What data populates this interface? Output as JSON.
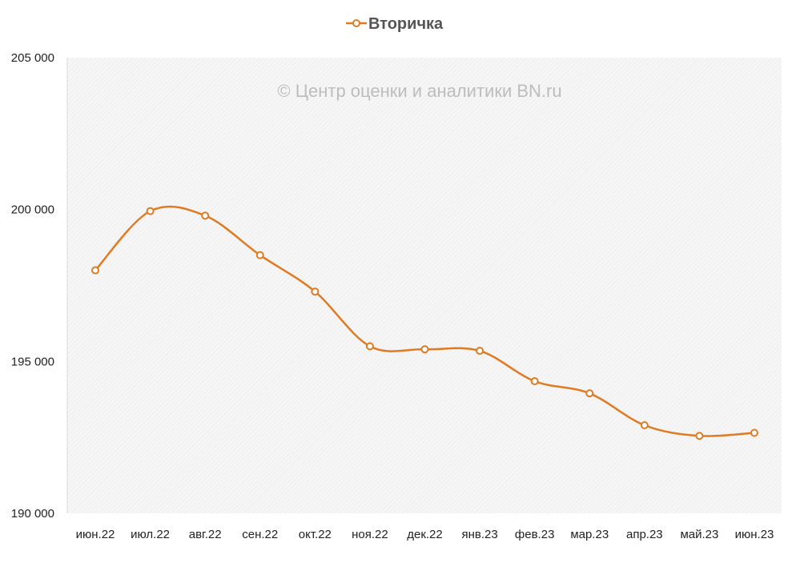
{
  "chart_data": {
    "type": "line",
    "title": "",
    "xlabel": "",
    "ylabel": "",
    "watermark": "© Центр оценки и аналитики BN.ru",
    "categories": [
      "июн.22",
      "июл.22",
      "авг.22",
      "сен.22",
      "окт.22",
      "ноя.22",
      "дек.22",
      "янв.23",
      "фев.23",
      "мар.23",
      "апр.23",
      "май.23",
      "июн.23"
    ],
    "series": [
      {
        "name": "Вторичка",
        "color": "#E07B24",
        "values": [
          198000,
          199950,
          199800,
          198500,
          197300,
          195500,
          195400,
          195350,
          194350,
          193950,
          192900,
          192550,
          192650
        ]
      }
    ],
    "ylim": [
      190000,
      205000
    ],
    "yticks": [
      190000,
      195000,
      200000,
      205000
    ],
    "ytick_labels": [
      "190 000",
      "195 000",
      "200 000",
      "205 000"
    ],
    "legend_position": "top",
    "grid": false,
    "smooth": true
  }
}
